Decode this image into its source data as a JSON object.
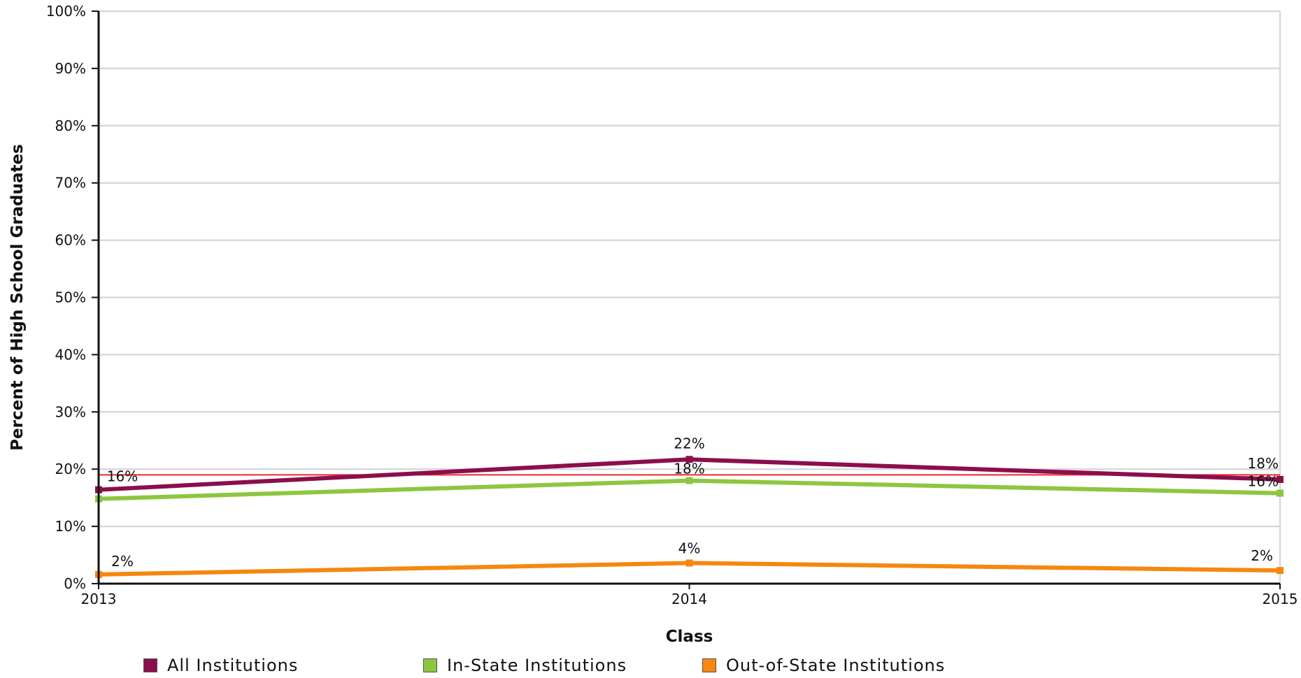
{
  "chart_data": {
    "type": "line",
    "x": [
      "2013",
      "2014",
      "2015"
    ],
    "xlabel": "Class",
    "ylabel": "Percent of High School Graduates",
    "ylim": [
      0,
      100
    ],
    "yticks": [
      "0%",
      "10%",
      "20%",
      "30%",
      "40%",
      "50%",
      "60%",
      "70%",
      "80%",
      "90%",
      "100%"
    ],
    "grid": true,
    "legend_position": "bottom",
    "reference_line": {
      "value": 19,
      "color": "#e8292b"
    },
    "series": [
      {
        "name": "All Institutions",
        "color": "#8b0e4d",
        "values": [
          16.4,
          21.7,
          18.2
        ],
        "labels": [
          "16%",
          "22%",
          "18%"
        ]
      },
      {
        "name": "In-State Institutions",
        "color": "#8dc63f",
        "values": [
          14.8,
          18.0,
          15.8
        ],
        "labels": [
          "",
          "18%",
          "16%"
        ]
      },
      {
        "name": "Out-of-State Institutions",
        "color": "#f7870f",
        "values": [
          1.6,
          3.6,
          2.3
        ],
        "labels": [
          "2%",
          "4%",
          "2%"
        ]
      }
    ]
  }
}
